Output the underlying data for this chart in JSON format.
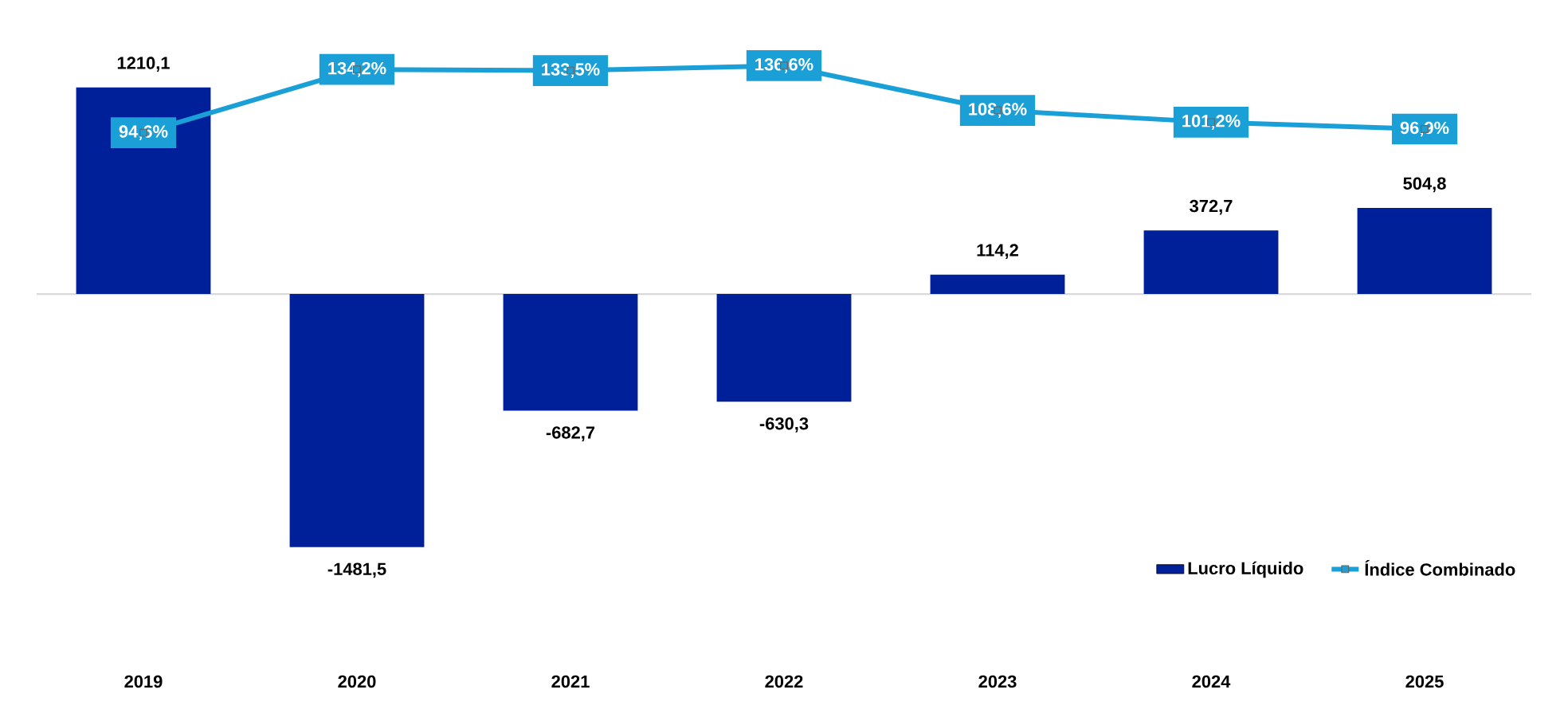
{
  "chart_data": {
    "type": "bar",
    "categories": [
      "2019",
      "2020",
      "2021",
      "2022",
      "2023",
      "2024",
      "2025"
    ],
    "series": [
      {
        "name": "Lucro Líquido",
        "color": "#00209a",
        "values": [
          1210.1,
          -1481.5,
          -682.7,
          -630.3,
          114.2,
          372.7,
          504.8
        ],
        "value_labels": [
          "1210,1",
          "-1481,5",
          "-682,7",
          "-630,3",
          "114,2",
          "372,7",
          "504,8"
        ]
      },
      {
        "name": "Índice Combinado",
        "type": "line",
        "axis": "y2",
        "color": "#1a9fd6",
        "values": [
          94.6,
          134.2,
          133.5,
          136.6,
          108.6,
          101.2,
          96.9
        ],
        "value_labels": [
          "94,6%",
          "134,2%",
          "133,5%",
          "136,6%",
          "108,6%",
          "101,2%",
          "96,9%"
        ]
      }
    ],
    "marker": "square",
    "line_style": "solid",
    "legend": "bottom right",
    "grid": false,
    "tick_labels": "x"
  }
}
